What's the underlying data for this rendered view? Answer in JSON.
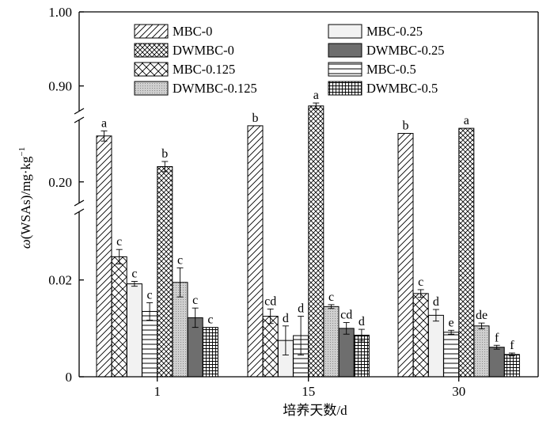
{
  "chart_data": {
    "type": "bar",
    "xlabel": "培养天数/d",
    "ylabel": {
      "omega": "ω",
      "rest": "(WSAs)/mg·kg",
      "sup": "−1"
    },
    "categories": [
      "1",
      "15",
      "30"
    ],
    "y_axis": {
      "segments": [
        {
          "name": "lower",
          "range": [
            0,
            0.035
          ],
          "ticks": [
            0,
            0.02
          ],
          "tick_labels": [
            "0",
            "0.02"
          ]
        },
        {
          "name": "middle",
          "range": [
            0.19,
            0.226
          ],
          "ticks": [
            0.2
          ],
          "tick_labels": [
            "0.20"
          ]
        },
        {
          "name": "upper",
          "range": [
            0.86,
            1.0
          ],
          "ticks": [
            0.9,
            1.0
          ],
          "tick_labels": [
            "0.90",
            "1.00"
          ]
        }
      ],
      "axis_break": true
    },
    "series": [
      {
        "name": "MBC-0",
        "pattern": "diag-forward",
        "values": [
          0.218,
          0.222,
          0.219
        ],
        "errors": [
          0.002,
          0,
          0
        ],
        "letters": [
          "a",
          "b",
          "b"
        ]
      },
      {
        "name": "MBC-0.125",
        "pattern": "cross-diag",
        "values": [
          0.0248,
          0.0125,
          0.0172
        ],
        "errors": [
          0.0015,
          0.0015,
          0.0008
        ],
        "letters": [
          "c",
          "cd",
          "c"
        ]
      },
      {
        "name": "MBC-0.25",
        "pattern": "light",
        "values": [
          0.0192,
          0.0075,
          0.0127
        ],
        "errors": [
          0.0005,
          0.003,
          0.0012
        ],
        "letters": [
          "c",
          "d",
          "d"
        ]
      },
      {
        "name": "MBC-0.5",
        "pattern": "horizontal",
        "values": [
          0.0135,
          0.0085,
          0.0092
        ],
        "errors": [
          0.0018,
          0.004,
          0.0004
        ],
        "letters": [
          "c",
          "d",
          "e"
        ]
      },
      {
        "name": "DWMBC-0",
        "pattern": "cross-diag-dense",
        "values": [
          0.206,
          0.873,
          0.221
        ],
        "errors": [
          0.002,
          0.004,
          0
        ],
        "letters": [
          "b",
          "a",
          "a"
        ]
      },
      {
        "name": "DWMBC-0.125",
        "pattern": "dots",
        "values": [
          0.0195,
          0.0145,
          0.0105
        ],
        "errors": [
          0.003,
          0.0004,
          0.0006
        ],
        "letters": [
          "c",
          "c",
          "de"
        ]
      },
      {
        "name": "DWMBC-0.25",
        "pattern": "dark",
        "values": [
          0.0122,
          0.01,
          0.0061
        ],
        "errors": [
          0.002,
          0.0012,
          0.0004
        ],
        "letters": [
          "c",
          "cd",
          "f"
        ]
      },
      {
        "name": "DWMBC-0.5",
        "pattern": "grid",
        "values": [
          0.0102,
          0.0086,
          0.0046
        ],
        "errors": [
          0,
          0.0012,
          0.0003
        ],
        "letters": [
          "c",
          "d",
          "f"
        ]
      }
    ],
    "legend": {
      "placement": "top",
      "columns": 2,
      "order": [
        "MBC-0",
        "MBC-0.25",
        "DWMBC-0",
        "DWMBC-0.25",
        "MBC-0.125",
        "MBC-0.5",
        "DWMBC-0.125",
        "DWMBC-0.5"
      ]
    }
  }
}
